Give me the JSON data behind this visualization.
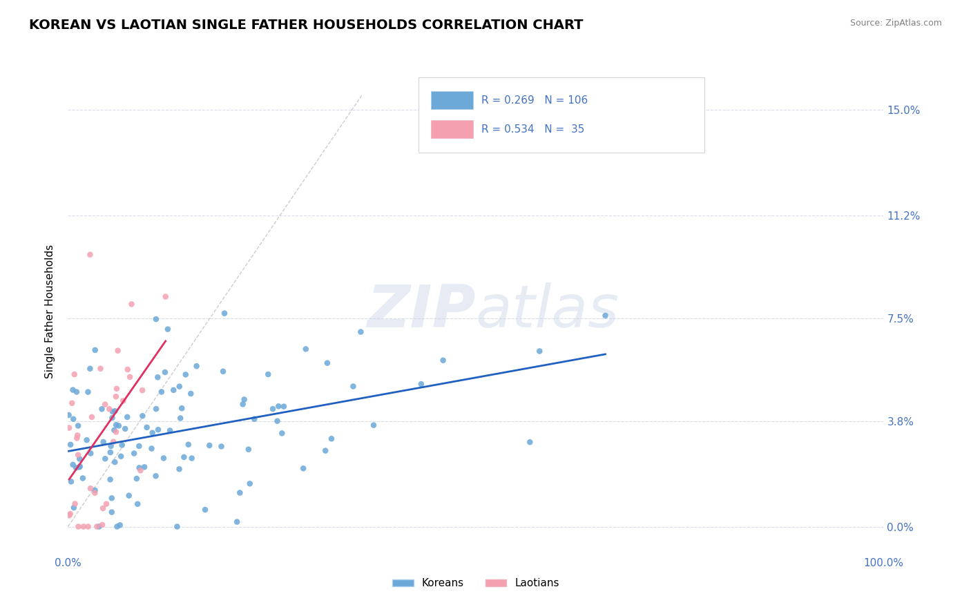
{
  "title": "KOREAN VS LAOTIAN SINGLE FATHER HOUSEHOLDS CORRELATION CHART",
  "source_text": "Source: ZipAtlas.com",
  "ylabel": "Single Father Households",
  "xlim": [
    0.0,
    1.0
  ],
  "ylim": [
    -0.01,
    0.165
  ],
  "yticks": [
    0.0,
    0.038,
    0.075,
    0.112,
    0.15
  ],
  "ytick_labels": [
    "0.0%",
    "3.8%",
    "7.5%",
    "11.2%",
    "15.0%"
  ],
  "xticks": [
    0.0,
    1.0
  ],
  "xtick_labels": [
    "0.0%",
    "100.0%"
  ],
  "korean_color": "#6ca8d8",
  "laotian_color": "#f4a0b0",
  "korean_line_color": "#2060c0",
  "laotian_line_color": "#e03060",
  "diag_line_color": "#c0c0c0",
  "grid_color": "#d8dce8",
  "legend_R_korean": "0.269",
  "legend_N_korean": "106",
  "legend_R_laotian": "0.534",
  "legend_N_laotian": "35",
  "legend_label_korean": "Koreans",
  "legend_label_laotian": "Laotians",
  "title_fontsize": 14,
  "axis_label_color": "#4472c4",
  "watermark_zip": "ZIP",
  "watermark_atlas": "atlas",
  "background_color": "#ffffff"
}
